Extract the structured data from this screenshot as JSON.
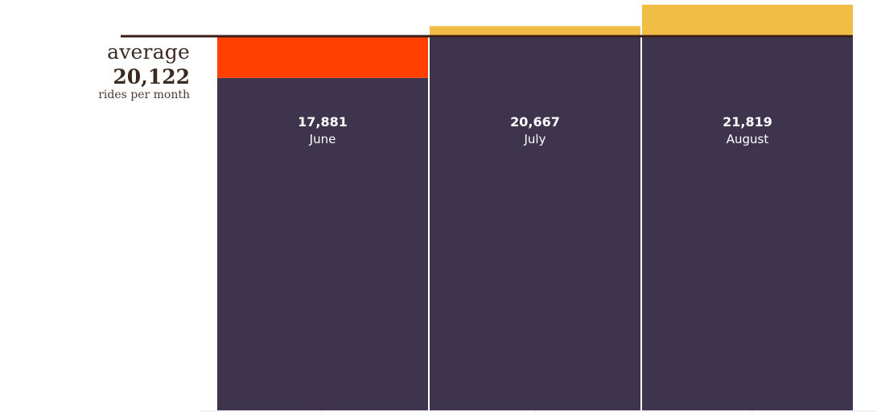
{
  "chart_data": {
    "type": "bar",
    "categories": [
      "June",
      "July",
      "August"
    ],
    "values": [
      17881,
      20667,
      21819
    ],
    "value_labels": [
      "17,881",
      "20,667",
      "21,819"
    ],
    "average": {
      "word": "average",
      "value": 20122,
      "value_label": "20,122",
      "unit": "rides per month"
    },
    "title": "",
    "xlabel": "",
    "ylabel": "",
    "grid": false,
    "legend": "none"
  },
  "colors": {
    "bar": "#3e344d",
    "below_average": "#ff4000",
    "above_average": "#f0bd45",
    "average_line": "#3a1f17",
    "baseline": "#e6e6e6",
    "text_dark": "#3a2a22",
    "text_light": "#ffffff"
  }
}
